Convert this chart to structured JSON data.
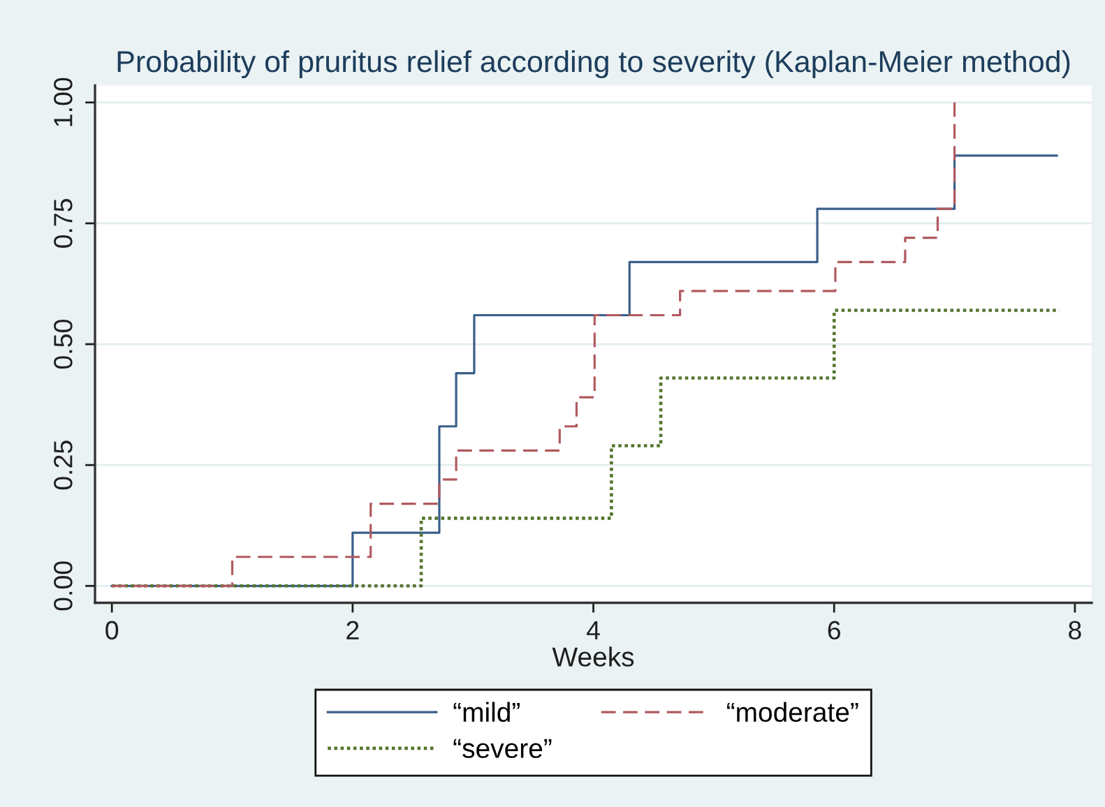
{
  "chart_data": {
    "type": "step",
    "title": "Probability of pruritus relief according to severity (Kaplan-Meier method)",
    "xlabel": "Weeks",
    "xlim": [
      -0.14,
      8.14
    ],
    "xticks": [
      0,
      2,
      4,
      6,
      8
    ],
    "ylim": [
      -0.035,
      1.035
    ],
    "yticks": [
      {
        "value": 0,
        "label": "0.00"
      },
      {
        "value": 0.25,
        "label": "0.25"
      },
      {
        "value": 0.5,
        "label": "0.50"
      },
      {
        "value": 0.75,
        "label": "0.75"
      },
      {
        "value": 1,
        "label": "1.00"
      }
    ],
    "grid": "y",
    "legend": "bottom",
    "series": [
      {
        "name": "“mild”",
        "color": "#3a5f8a",
        "line_style": "solid",
        "x": [
          0,
          2.0,
          2.72,
          2.86,
          3.01,
          4.3,
          5.86,
          7.0,
          7.85
        ],
        "values": [
          0,
          0.11,
          0.33,
          0.44,
          0.56,
          0.67,
          0.78,
          0.89,
          0.89
        ]
      },
      {
        "name": "“moderate”",
        "color": "#b05a5f",
        "line_style": "dashed",
        "x": [
          0,
          1.0,
          2.15,
          2.72,
          2.86,
          3.72,
          3.86,
          4.01,
          4.72,
          6.01,
          6.59,
          6.86,
          7.0
        ],
        "values": [
          0,
          0.06,
          0.17,
          0.22,
          0.28,
          0.33,
          0.39,
          0.56,
          0.61,
          0.67,
          0.72,
          0.78,
          1.0
        ]
      },
      {
        "name": "“severe”",
        "color": "#55752f",
        "line_style": "dotted",
        "x": [
          0,
          2.57,
          4.15,
          4.56,
          6.0,
          7.87
        ],
        "values": [
          0,
          0.14,
          0.29,
          0.43,
          0.57,
          0.57
        ]
      }
    ]
  }
}
